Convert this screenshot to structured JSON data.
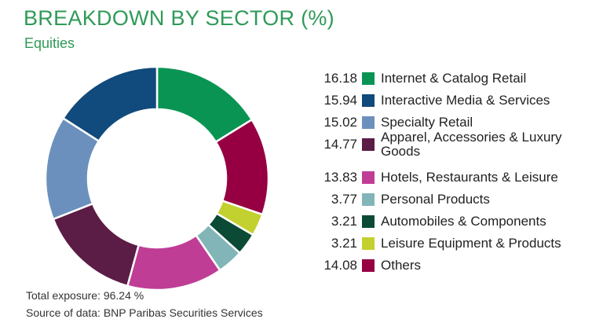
{
  "header": {
    "title": "BREAKDOWN BY SECTOR (%)",
    "subtitle": "Equities"
  },
  "footer": {
    "total_exposure": "Total exposure: 96.24 %",
    "source": "Source of data: BNP Paribas Securities Services"
  },
  "chart_data": {
    "type": "pie",
    "title": "BREAKDOWN BY SECTOR (%)",
    "subtitle": "Equities",
    "legend_position": "right",
    "categories": [
      "Internet & Catalog Retail",
      "Interactive Media & Services",
      "Specialty Retail",
      "Apparel, Accessories & Luxury Goods",
      "Hotels, Restaurants & Leisure",
      "Personal Products",
      "Automobiles & Components",
      "Leisure Equipment & Products",
      "Others"
    ],
    "values": [
      16.18,
      15.94,
      15.02,
      14.77,
      13.83,
      3.77,
      3.21,
      3.21,
      14.08
    ],
    "value_labels": [
      "16.18",
      "15.94",
      "15.02",
      "14.77",
      "13.83",
      "3.77",
      "3.21",
      "3.21",
      "14.08"
    ],
    "colors": [
      "#0a9454",
      "#114a7c",
      "#6b90bd",
      "#5b1c45",
      "#bf3d95",
      "#82b5b7",
      "#0b4a35",
      "#c2d12f",
      "#960042"
    ],
    "clockwise_order_from_top": [
      "Internet & Catalog Retail",
      "Others",
      "Leisure Equipment & Products",
      "Automobiles & Components",
      "Personal Products",
      "Hotels, Restaurants & Leisure",
      "Apparel, Accessories & Luxury Goods",
      "Specialty Retail",
      "Interactive Media & Services"
    ]
  }
}
